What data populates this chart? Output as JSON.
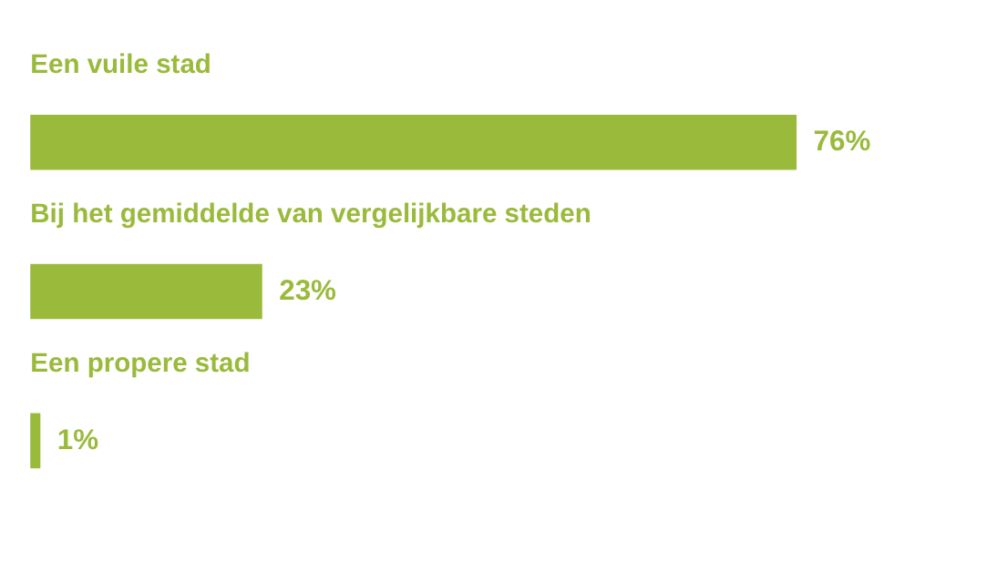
{
  "chart_data": {
    "type": "bar",
    "orientation": "horizontal",
    "color": "#9aba3c",
    "categories": [
      "Een vuile stad",
      "Bij het gemiddelde van vergelijkbare steden",
      "Een propere stad"
    ],
    "values": [
      76,
      23,
      1
    ],
    "value_labels": [
      "76%",
      "23%",
      "1%"
    ]
  }
}
